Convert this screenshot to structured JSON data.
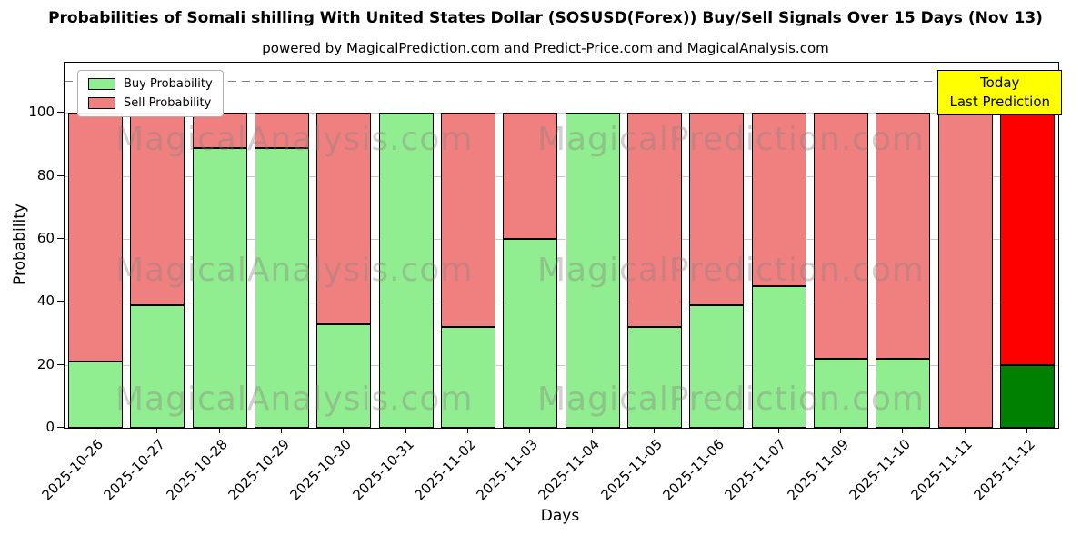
{
  "subtitle": "powered by MagicalPrediction.com and Predict-Price.com and MagicalAnalysis.com",
  "today_box": {
    "line1": "Today",
    "line2": "Last Prediction",
    "bg": "#ffff00",
    "border": "#000000"
  },
  "watermarks": {
    "left": "MagicalAnalysis.com",
    "right": "MagicalPrediction.com"
  },
  "colors": {
    "buy": "#90ee90",
    "sell": "#f08080",
    "today_buy": "#008000",
    "today_sell": "#ff0000",
    "grid": "#c9c9c9",
    "threshold_line": "#7f7f7f",
    "axis": "#000000"
  },
  "chart_data": {
    "type": "bar",
    "stacked": true,
    "title": "Probabilities of Somali shilling With United States Dollar (SOSUSD(Forex)) Buy/Sell Signals Over 15 Days (Nov 13)",
    "xlabel": "Days",
    "ylabel": "Probability",
    "ylim": [
      0,
      116
    ],
    "yticks": [
      0,
      20,
      40,
      60,
      80,
      100
    ],
    "grid": true,
    "legend_position": "upper left",
    "threshold_dashed_line_y": 110,
    "categories": [
      "2025-10-26",
      "2025-10-27",
      "2025-10-28",
      "2025-10-29",
      "2025-10-30",
      "2025-10-31",
      "2025-11-02",
      "2025-11-03",
      "2025-11-04",
      "2025-11-05",
      "2025-11-06",
      "2025-11-07",
      "2025-11-09",
      "2025-11-10",
      "2025-11-11",
      "2025-11-12"
    ],
    "series": [
      {
        "name": "Buy Probability",
        "color": "#90ee90",
        "values": [
          21,
          39,
          89,
          89,
          33,
          100,
          32,
          60,
          100,
          32,
          39,
          45,
          22,
          22,
          0,
          20
        ]
      },
      {
        "name": "Sell Probability",
        "color": "#f08080",
        "values": [
          79,
          61,
          11,
          11,
          67,
          0,
          68,
          40,
          0,
          68,
          61,
          55,
          78,
          78,
          100,
          90
        ]
      }
    ],
    "today_index": 15,
    "today_colors": {
      "buy": "#008000",
      "sell": "#ff0000"
    },
    "note": "Final bar (2025-11-12) is drawn in saturated red/green and extends up to the dashed threshold line at 110"
  }
}
